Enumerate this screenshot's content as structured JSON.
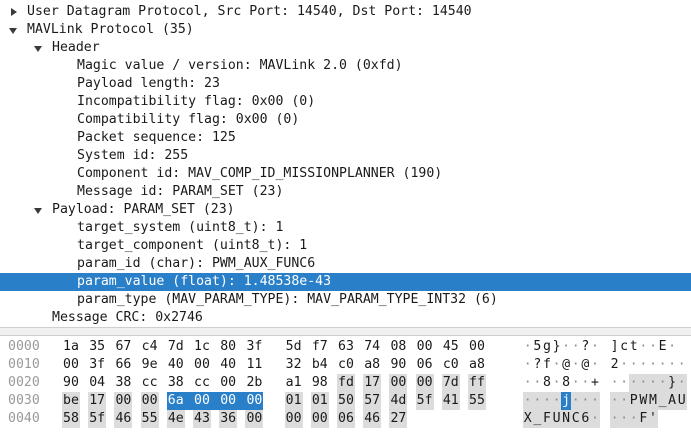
{
  "tree": [
    {
      "indent": 0,
      "expander": "right",
      "text": "User Datagram Protocol, Src Port: 14540, Dst Port: 14540",
      "selected": false
    },
    {
      "indent": 0,
      "expander": "down",
      "text": "MAVLink Protocol (35)",
      "selected": false
    },
    {
      "indent": 1,
      "expander": "down",
      "text": "Header",
      "selected": false
    },
    {
      "indent": 2,
      "expander": "none",
      "text": "Magic value / version: MAVLink 2.0 (0xfd)",
      "selected": false
    },
    {
      "indent": 2,
      "expander": "none",
      "text": "Payload length: 23",
      "selected": false
    },
    {
      "indent": 2,
      "expander": "none",
      "text": "Incompatibility flag: 0x00 (0)",
      "selected": false
    },
    {
      "indent": 2,
      "expander": "none",
      "text": "Compatibility flag: 0x00 (0)",
      "selected": false
    },
    {
      "indent": 2,
      "expander": "none",
      "text": "Packet sequence: 125",
      "selected": false
    },
    {
      "indent": 2,
      "expander": "none",
      "text": "System id: 255",
      "selected": false
    },
    {
      "indent": 2,
      "expander": "none",
      "text": "Component id: MAV_COMP_ID_MISSIONPLANNER (190)",
      "selected": false
    },
    {
      "indent": 2,
      "expander": "none",
      "text": "Message id: PARAM_SET (23)",
      "selected": false
    },
    {
      "indent": 1,
      "expander": "down",
      "text": "Payload: PARAM_SET (23)",
      "selected": false
    },
    {
      "indent": 2,
      "expander": "none",
      "text": "target_system (uint8_t): 1",
      "selected": false
    },
    {
      "indent": 2,
      "expander": "none",
      "text": "target_component (uint8_t): 1",
      "selected": false
    },
    {
      "indent": 2,
      "expander": "none",
      "text": "param_id (char): PWM_AUX_FUNC6",
      "selected": false
    },
    {
      "indent": 2,
      "expander": "none",
      "text": "param_value (float): 1.48538e-43",
      "selected": true
    },
    {
      "indent": 2,
      "expander": "none",
      "text": "param_type (MAV_PARAM_TYPE): MAV_PARAM_TYPE_INT32 (6)",
      "selected": false
    },
    {
      "indent": 1,
      "expander": "none",
      "text": "Message CRC: 0x2746",
      "selected": false
    }
  ],
  "bytes": [
    {
      "offset": "0000",
      "hex": [
        "1a",
        "35",
        "67",
        "c4",
        "7d",
        "1c",
        "80",
        "3f",
        "5d",
        "f7",
        "63",
        "74",
        "08",
        "00",
        "45",
        "00"
      ],
      "ascii": [
        "·",
        "5",
        "g",
        "}",
        "·",
        "?",
        "]",
        "c",
        "t",
        "·",
        "E"
      ]
    },
    {
      "offset": "0010",
      "hex": [
        "00",
        "3f",
        "66",
        "9e",
        "40",
        "00",
        "40",
        "11",
        "32",
        "b4",
        "c0",
        "a8",
        "90",
        "06",
        "c0",
        "a8"
      ],
      "ascii": [
        "·",
        "?",
        "f",
        "·",
        "@",
        "·",
        "@",
        "·",
        "2",
        "·",
        "·",
        "·",
        "·",
        "·",
        "·",
        "·"
      ]
    },
    {
      "offset": "0020",
      "hex": [
        "90",
        "04",
        "38",
        "cc",
        "38",
        "cc",
        "00",
        "2b",
        "a1",
        "98",
        "fd",
        "17",
        "00",
        "00",
        "7d",
        "ff"
      ],
      "ascii": [
        "·",
        "·",
        "8",
        "·",
        "8",
        "·",
        "·",
        "+",
        "·",
        "·",
        "·",
        "·",
        "·",
        "·",
        "}",
        "·"
      ]
    },
    {
      "offset": "0030",
      "hex": [
        "be",
        "17",
        "00",
        "00",
        "6a",
        "00",
        "00",
        "00",
        "01",
        "01",
        "50",
        "57",
        "4d",
        "5f",
        "41",
        "55"
      ],
      "ascii": [
        "·",
        "·",
        "·",
        "·",
        "j",
        "·",
        "·",
        "·",
        "·",
        "·",
        "P",
        "W",
        "M",
        "_",
        "A",
        "U"
      ]
    },
    {
      "offset": "0040",
      "hex": [
        "58",
        "5f",
        "46",
        "55",
        "4e",
        "43",
        "36",
        "00",
        "00",
        "00",
        "06",
        "46",
        "27"
      ],
      "ascii": [
        "X",
        "_",
        "F",
        "U",
        "N",
        "C",
        "6",
        "·",
        "·",
        "·",
        "·",
        "F",
        "'"
      ]
    }
  ],
  "ascii_lines": [
    "·5g}··?]ct··E·",
    "·?f·@·@·2·······",
    "··8·8··+··  ···}·",
    "····j···  ··PWM_AU",
    "X_FUNC6·  ···F'"
  ],
  "highlight": {
    "selected_color": "#2a7fc9",
    "packet_color": "#dcdcdc"
  }
}
